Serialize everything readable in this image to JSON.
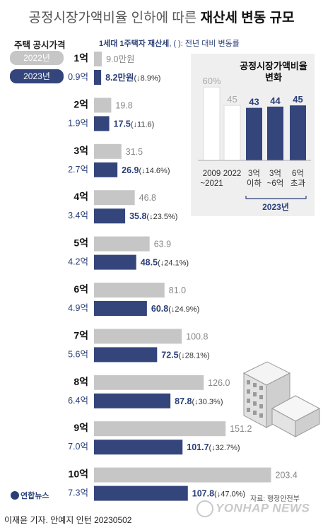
{
  "title": {
    "light": "공정시장가액비율 인하에 따른 ",
    "bold": "재산세 변동 규모"
  },
  "axis_head": "주택 공시가격",
  "legend_note": {
    "bold": "1세대 1주택자 재산세",
    "rest": ", (  ): 전년 대비 변동률"
  },
  "legend": {
    "y2022": "2022년",
    "y2023": "2023년"
  },
  "colors": {
    "y2022": "#c6c6c6",
    "y2023": "#33457b",
    "accent_text": "#2a3f78"
  },
  "chart_data": [
    {
      "type": "bar",
      "orientation": "horizontal",
      "categories": [
        "1억",
        "2억",
        "3억",
        "4억",
        "5억",
        "6억",
        "7억",
        "8억",
        "9억",
        "10억"
      ],
      "sub_labels": [
        "0.9억",
        "1.9억",
        "2.7억",
        "3.4억",
        "4.2억",
        "4.9억",
        "5.6억",
        "6.4억",
        "7.0억",
        "7.3억"
      ],
      "series": [
        {
          "name": "2022년",
          "values": [
            9.0,
            19.8,
            31.5,
            46.8,
            63.9,
            81.0,
            100.8,
            126.0,
            151.2,
            203.4
          ],
          "labels": [
            "9.0만원",
            "19.8",
            "31.5",
            "46.8",
            "63.9",
            "81.0",
            "100.8",
            "126.0",
            "151.2",
            "203.4"
          ]
        },
        {
          "name": "2023년",
          "values": [
            8.2,
            17.5,
            26.9,
            35.8,
            48.5,
            60.8,
            72.5,
            87.8,
            101.7,
            107.8
          ],
          "labels": [
            "8.2만원",
            "17.5",
            "26.9",
            "35.8",
            "48.5",
            "60.8",
            "72.5",
            "87.8",
            "101.7",
            "107.8"
          ],
          "changes": [
            "(↓8.9%)",
            "(↓11.6)",
            "(↓14.6%)",
            "(↓23.5%)",
            "(↓24.1%)",
            "(↓24.9%)",
            "(↓28.1%)",
            "(↓30.3%)",
            "(↓32.7%)",
            "(↓47.0%)"
          ]
        }
      ]
    },
    {
      "type": "bar",
      "title": "공정시장가액비율 변화",
      "categories": [
        "2009 ~2021",
        "2022",
        "3억 이하",
        "3억 ~6억",
        "6억 초과"
      ],
      "values": [
        60,
        45,
        43,
        44,
        45
      ],
      "labels": [
        "60%",
        "45",
        "43",
        "44",
        "45"
      ],
      "group_label": "2023년",
      "ylim": [
        0,
        65
      ]
    }
  ],
  "source": "자료: 행정안전부",
  "credit": "이재윤 기자. 안예지 인턴  20230502",
  "logo": "연합뉴스",
  "watermark": "YONHAP NEWS"
}
